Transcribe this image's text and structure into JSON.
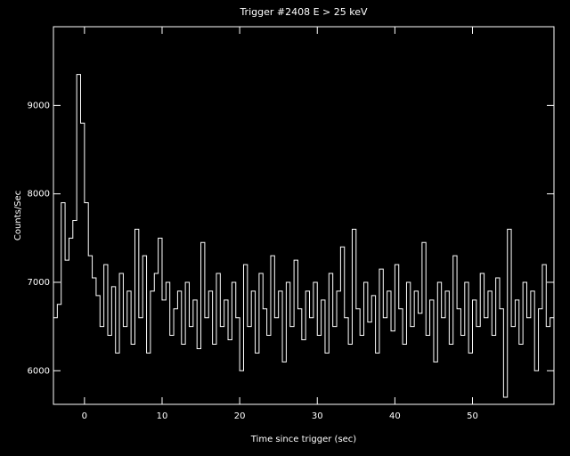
{
  "chart_data": {
    "type": "line",
    "step": true,
    "title": "Trigger #2408 E > 25 keV",
    "x_label": "Time since trigger (sec)",
    "y_label": "Counts/Sec",
    "color": "#ffffff",
    "xlim": [
      -4.0,
      60.5
    ],
    "ylim": [
      5620,
      9890
    ],
    "xticks": [
      0,
      10,
      20,
      30,
      40,
      50
    ],
    "yticks": [
      6000,
      7000,
      8000,
      9000
    ],
    "grid": false,
    "x": [
      -4.0,
      -3.5,
      -3.0,
      -2.5,
      -2.0,
      -1.5,
      -1.0,
      -0.5,
      0.0,
      0.5,
      1.0,
      1.5,
      2.0,
      2.5,
      3.0,
      3.5,
      4.0,
      4.5,
      5.0,
      5.5,
      6.0,
      6.5,
      7.0,
      7.5,
      8.0,
      8.5,
      9.0,
      9.5,
      10.0,
      10.5,
      11.0,
      11.5,
      12.0,
      12.5,
      13.0,
      13.5,
      14.0,
      14.5,
      15.0,
      15.5,
      16.0,
      16.5,
      17.0,
      17.5,
      18.0,
      18.5,
      19.0,
      19.5,
      20.0,
      20.5,
      21.0,
      21.5,
      22.0,
      22.5,
      23.0,
      23.5,
      24.0,
      24.5,
      25.0,
      25.5,
      26.0,
      26.5,
      27.0,
      27.5,
      28.0,
      28.5,
      29.0,
      29.5,
      30.0,
      30.5,
      31.0,
      31.5,
      32.0,
      32.5,
      33.0,
      33.5,
      34.0,
      34.5,
      35.0,
      35.5,
      36.0,
      36.5,
      37.0,
      37.5,
      38.0,
      38.5,
      39.0,
      39.5,
      40.0,
      40.5,
      41.0,
      41.5,
      42.0,
      42.5,
      43.0,
      43.5,
      44.0,
      44.5,
      45.0,
      45.5,
      46.0,
      46.5,
      47.0,
      47.5,
      48.0,
      48.5,
      49.0,
      49.5,
      50.0,
      50.5,
      51.0,
      51.5,
      52.0,
      52.5,
      53.0,
      53.5,
      54.0,
      54.5,
      55.0,
      55.5,
      56.0,
      56.5,
      57.0,
      57.5,
      58.0,
      58.5,
      59.0,
      59.5,
      60.0
    ],
    "values": [
      6600,
      6750,
      7900,
      7250,
      7500,
      7700,
      9350,
      8800,
      7900,
      7300,
      7050,
      6850,
      6500,
      7200,
      6400,
      6950,
      6200,
      7100,
      6500,
      6900,
      6300,
      7600,
      6600,
      7300,
      6200,
      6900,
      7100,
      7500,
      6800,
      7000,
      6400,
      6700,
      6900,
      6300,
      7000,
      6500,
      6800,
      6250,
      7450,
      6600,
      6900,
      6300,
      7100,
      6500,
      6800,
      6350,
      7000,
      6600,
      6000,
      7200,
      6500,
      6900,
      6200,
      7100,
      6700,
      6400,
      7300,
      6600,
      6900,
      6100,
      7000,
      6500,
      7250,
      6700,
      6350,
      6900,
      6600,
      7000,
      6400,
      6800,
      6200,
      7100,
      6500,
      6900,
      7400,
      6600,
      6300,
      7600,
      6700,
      6400,
      7000,
      6550,
      6850,
      6200,
      7150,
      6600,
      6900,
      6450,
      7200,
      6700,
      6300,
      7000,
      6500,
      6900,
      6650,
      7450,
      6400,
      6800,
      6100,
      7000,
      6600,
      6900,
      6300,
      7300,
      6700,
      6400,
      7000,
      6200,
      6800,
      6500,
      7100,
      6600,
      6900,
      6400,
      7050,
      6700,
      5700,
      7600,
      6500,
      6800,
      6300,
      7000,
      6600,
      6900,
      6000,
      6700,
      7200,
      6500,
      6600
    ]
  }
}
